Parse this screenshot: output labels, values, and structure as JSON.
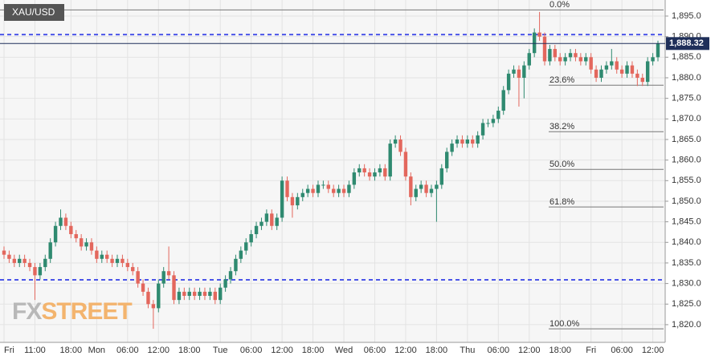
{
  "chart_data": {
    "type": "candlestick",
    "symbol": "XAU/USD",
    "watermark": {
      "part1": "FX",
      "part2": "STREET"
    },
    "categories": [
      "Fri",
      null,
      null,
      null,
      null,
      null,
      "11:00",
      null,
      null,
      null,
      null,
      null,
      null,
      "18:00",
      null,
      null,
      null,
      null,
      "Mon",
      null,
      null,
      null,
      null,
      null,
      "06:00",
      null,
      null,
      null,
      null,
      null,
      "12:00",
      null,
      null,
      null,
      null,
      null,
      "18:00",
      null,
      null,
      null,
      null,
      null,
      "Tue",
      null,
      null,
      null,
      null,
      null,
      "06:00",
      null,
      null,
      null,
      null,
      null,
      "12:00",
      null,
      null,
      null,
      null,
      null,
      "18:00",
      null,
      null,
      null,
      null,
      null,
      "Wed",
      null,
      null,
      null,
      null,
      null,
      "06:00",
      null,
      null,
      null,
      null,
      null,
      "12:00",
      null,
      null,
      null,
      null,
      null,
      "18:00",
      null,
      null,
      null,
      null,
      null,
      "Thu",
      null,
      null,
      null,
      null,
      null,
      "06:00",
      null,
      null,
      null,
      null,
      null,
      "12:00",
      null,
      null,
      null,
      null,
      null,
      "18:00",
      null,
      null,
      null,
      null,
      null,
      "Fri",
      null,
      null,
      null,
      null,
      null,
      "06:00",
      null,
      null,
      null,
      null,
      null,
      "12:00",
      null
    ],
    "open": [
      1838,
      1837,
      1836,
      1835,
      1836,
      1835,
      1834,
      1832,
      1834,
      1836,
      1840,
      1844,
      1846,
      1844,
      1842,
      1841,
      1839,
      1840,
      1838,
      1836,
      1837,
      1836,
      1835,
      1836,
      1835,
      1834,
      1833,
      1830,
      1828,
      1825,
      1824,
      1830,
      1833,
      1832,
      1826,
      1828,
      1827,
      1828,
      1827,
      1828,
      1827,
      1828,
      1826,
      1829,
      1831,
      1833,
      1836,
      1838,
      1840,
      1842,
      1844,
      1845,
      1847,
      1844,
      1846,
      1855,
      1851,
      1849,
      1851,
      1852,
      1853,
      1852,
      1854,
      1854,
      1853,
      1852,
      1853,
      1852,
      1854,
      1857,
      1858,
      1857,
      1856,
      1857,
      1858,
      1856,
      1864,
      1865,
      1862,
      1856,
      1851,
      1853,
      1854,
      1852,
      1853,
      1854,
      1858,
      1862,
      1864,
      1865,
      1864,
      1865,
      1864,
      1866,
      1869,
      1869,
      1870,
      1872,
      1877,
      1881,
      1882,
      1880,
      1883,
      1886,
      1891,
      1890,
      1884,
      1887,
      1885,
      1884,
      1885,
      1886,
      1885,
      1884,
      1885,
      1882,
      1880,
      1882,
      1883,
      1884,
      1882,
      1881,
      1883,
      1881,
      1880,
      1879,
      1884,
      1885
    ],
    "high": [
      1839,
      1838,
      1837,
      1837,
      1837,
      1836,
      1835,
      1835,
      1837,
      1841,
      1845,
      1848,
      1847,
      1845,
      1843,
      1842,
      1841,
      1841,
      1839,
      1838,
      1838,
      1837,
      1837,
      1837,
      1836,
      1835,
      1834,
      1831,
      1829,
      1826,
      1831,
      1834,
      1839,
      1833,
      1829,
      1829,
      1829,
      1829,
      1829,
      1829,
      1829,
      1829,
      1830,
      1832,
      1834,
      1837,
      1839,
      1841,
      1843,
      1845,
      1846,
      1848,
      1848,
      1847,
      1856,
      1856,
      1852,
      1852,
      1853,
      1854,
      1854,
      1855,
      1855,
      1855,
      1854,
      1854,
      1854,
      1855,
      1858,
      1859,
      1859,
      1858,
      1858,
      1859,
      1859,
      1865,
      1866,
      1866,
      1863,
      1857,
      1854,
      1855,
      1855,
      1854,
      1855,
      1859,
      1863,
      1865,
      1866,
      1866,
      1866,
      1866,
      1867,
      1870,
      1870,
      1871,
      1873,
      1878,
      1882,
      1883,
      1883,
      1884,
      1887,
      1892,
      1896,
      1891,
      1888,
      1888,
      1886,
      1886,
      1887,
      1887,
      1886,
      1886,
      1886,
      1883,
      1883,
      1884,
      1887,
      1885,
      1883,
      1884,
      1884,
      1882,
      1881,
      1885,
      1886,
      1889
    ],
    "low": [
      1836,
      1835,
      1834,
      1834,
      1834,
      1833,
      1826,
      1831,
      1833,
      1835,
      1839,
      1843,
      1843,
      1841,
      1840,
      1838,
      1838,
      1837,
      1835,
      1835,
      1835,
      1834,
      1834,
      1834,
      1833,
      1832,
      1829,
      1827,
      1824,
      1819,
      1823,
      1829,
      1831,
      1825,
      1825,
      1826,
      1826,
      1826,
      1826,
      1826,
      1826,
      1825,
      1825,
      1828,
      1830,
      1832,
      1835,
      1837,
      1839,
      1841,
      1843,
      1844,
      1843,
      1843,
      1845,
      1850,
      1846,
      1848,
      1850,
      1851,
      1851,
      1851,
      1853,
      1852,
      1851,
      1851,
      1851,
      1851,
      1853,
      1856,
      1856,
      1855,
      1855,
      1856,
      1855,
      1855,
      1863,
      1861,
      1855,
      1849,
      1850,
      1852,
      1851,
      1851,
      1845,
      1853,
      1857,
      1861,
      1863,
      1863,
      1863,
      1863,
      1863,
      1865,
      1868,
      1868,
      1869,
      1871,
      1876,
      1880,
      1873,
      1875,
      1882,
      1885,
      1889,
      1883,
      1883,
      1884,
      1883,
      1883,
      1884,
      1884,
      1883,
      1883,
      1881,
      1879,
      1879,
      1881,
      1882,
      1881,
      1880,
      1880,
      1880,
      1878,
      1878,
      1878,
      1883,
      1884
    ],
    "close": [
      1837,
      1836,
      1835,
      1836,
      1835,
      1834,
      1832,
      1834,
      1836,
      1840,
      1844,
      1846,
      1844,
      1842,
      1841,
      1839,
      1840,
      1838,
      1836,
      1837,
      1836,
      1835,
      1836,
      1835,
      1834,
      1833,
      1830,
      1828,
      1825,
      1824,
      1830,
      1833,
      1832,
      1826,
      1828,
      1827,
      1828,
      1827,
      1828,
      1827,
      1828,
      1826,
      1829,
      1831,
      1833,
      1836,
      1838,
      1840,
      1842,
      1844,
      1845,
      1847,
      1844,
      1846,
      1855,
      1851,
      1849,
      1851,
      1852,
      1853,
      1852,
      1854,
      1854,
      1853,
      1852,
      1853,
      1852,
      1854,
      1857,
      1858,
      1857,
      1856,
      1857,
      1858,
      1856,
      1864,
      1865,
      1862,
      1856,
      1851,
      1853,
      1854,
      1852,
      1853,
      1854,
      1858,
      1862,
      1864,
      1865,
      1864,
      1865,
      1864,
      1866,
      1869,
      1869,
      1870,
      1872,
      1877,
      1881,
      1882,
      1880,
      1883,
      1886,
      1891,
      1890,
      1884,
      1887,
      1885,
      1884,
      1885,
      1886,
      1885,
      1884,
      1885,
      1882,
      1880,
      1882,
      1883,
      1884,
      1882,
      1881,
      1883,
      1881,
      1880,
      1879,
      1884,
      1885,
      1888.32
    ],
    "up_color": "#2f8a70",
    "down_color": "#e3675d",
    "ylim": [
      1815.7,
      1898.9
    ],
    "yticks": [
      {
        "value": 1820,
        "label": "1,820.0"
      },
      {
        "value": 1825,
        "label": "1,825.0"
      },
      {
        "value": 1830,
        "label": "1,830.0"
      },
      {
        "value": 1835,
        "label": "1,835.0"
      },
      {
        "value": 1840,
        "label": "1,840.0"
      },
      {
        "value": 1845,
        "label": "1,845.0"
      },
      {
        "value": 1850,
        "label": "1,850.0"
      },
      {
        "value": 1855,
        "label": "1,855.0"
      },
      {
        "value": 1860,
        "label": "1,860.0"
      },
      {
        "value": 1865,
        "label": "1,865.0"
      },
      {
        "value": 1870,
        "label": "1,870.0"
      },
      {
        "value": 1875,
        "label": "1,875.0"
      },
      {
        "value": 1880,
        "label": "1,880.0"
      },
      {
        "value": 1885,
        "label": "1,885.0"
      },
      {
        "value": 1890,
        "label": "1,890.0"
      },
      {
        "value": 1895,
        "label": "1,895.0"
      }
    ],
    "grid": true,
    "fib_levels": [
      {
        "label": "0.0%",
        "value": 1896.5
      },
      {
        "label": "23.6%",
        "value": 1878.2
      },
      {
        "label": "38.2%",
        "value": 1866.9
      },
      {
        "label": "50.0%",
        "value": 1857.75
      },
      {
        "label": "61.8%",
        "value": 1848.6
      },
      {
        "label": "100.0%",
        "value": 1819
      }
    ],
    "reference_lines": [
      1890.5,
      1830.9
    ],
    "reference_color": "#4b55e8",
    "last_price": {
      "value": 1888.32,
      "label": "1,888.32"
    }
  }
}
